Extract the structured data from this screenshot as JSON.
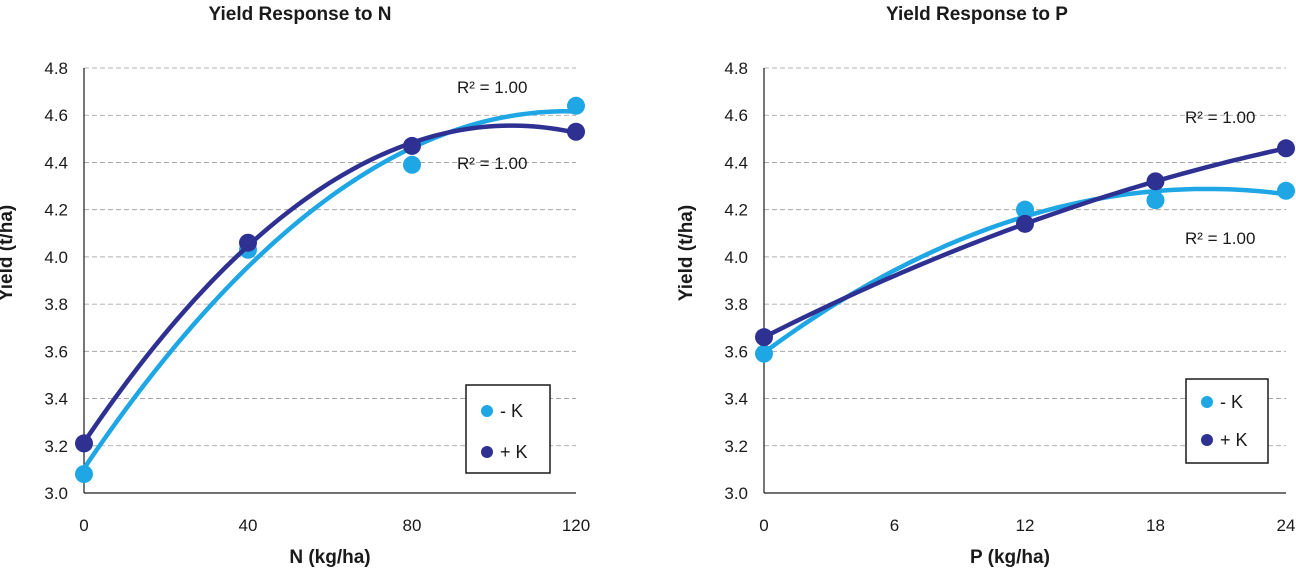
{
  "chart_data": [
    {
      "type": "scatter",
      "title": "Yield Response to N",
      "xlabel": "N (kg/ha)",
      "ylabel": "Yield (t/ha)",
      "xlim": [
        0,
        120
      ],
      "ylim": [
        3.0,
        4.8
      ],
      "x_ticks": [
        "0",
        "40",
        "80",
        "120"
      ],
      "y_ticks": [
        "3.0",
        "3.2",
        "3.4",
        "3.6",
        "3.8",
        "4.0",
        "4.2",
        "4.4",
        "4.6",
        "4.8"
      ],
      "grid": "horizontal dashed",
      "legend_position": "bottom-right",
      "series": [
        {
          "name": "- K",
          "color": "#1ea7e4",
          "x": [
            0,
            40,
            80,
            120
          ],
          "values": [
            3.08,
            4.03,
            4.39,
            4.64
          ],
          "r2_label": "R² = 1.00"
        },
        {
          "name": "+ K",
          "color": "#2e3192",
          "x": [
            0,
            40,
            80,
            120
          ],
          "values": [
            3.21,
            4.06,
            4.47,
            4.53
          ],
          "r2_label": "R² = 1.00"
        }
      ]
    },
    {
      "type": "scatter",
      "title": "Yield Response to P",
      "xlabel": "P (kg/ha)",
      "ylabel": "Yield (t/ha)",
      "xlim": [
        0,
        24
      ],
      "ylim": [
        3.0,
        4.8
      ],
      "x_ticks": [
        "0",
        "6",
        "12",
        "18",
        "24"
      ],
      "y_ticks": [
        "3.0",
        "3.2",
        "3.4",
        "3.6",
        "3.8",
        "4.0",
        "4.2",
        "4.4",
        "4.6",
        "4.8"
      ],
      "grid": "horizontal dashed",
      "legend_position": "bottom-right",
      "series": [
        {
          "name": "- K",
          "color": "#1ea7e4",
          "x": [
            0,
            12,
            18,
            24
          ],
          "values": [
            3.59,
            4.2,
            4.24,
            4.28
          ],
          "r2_label": "R² = 1.00"
        },
        {
          "name": "+ K",
          "color": "#2e3192",
          "x": [
            0,
            12,
            18,
            24
          ],
          "values": [
            3.66,
            4.14,
            4.32,
            4.46
          ],
          "r2_label": "R² = 1.00"
        }
      ]
    }
  ]
}
